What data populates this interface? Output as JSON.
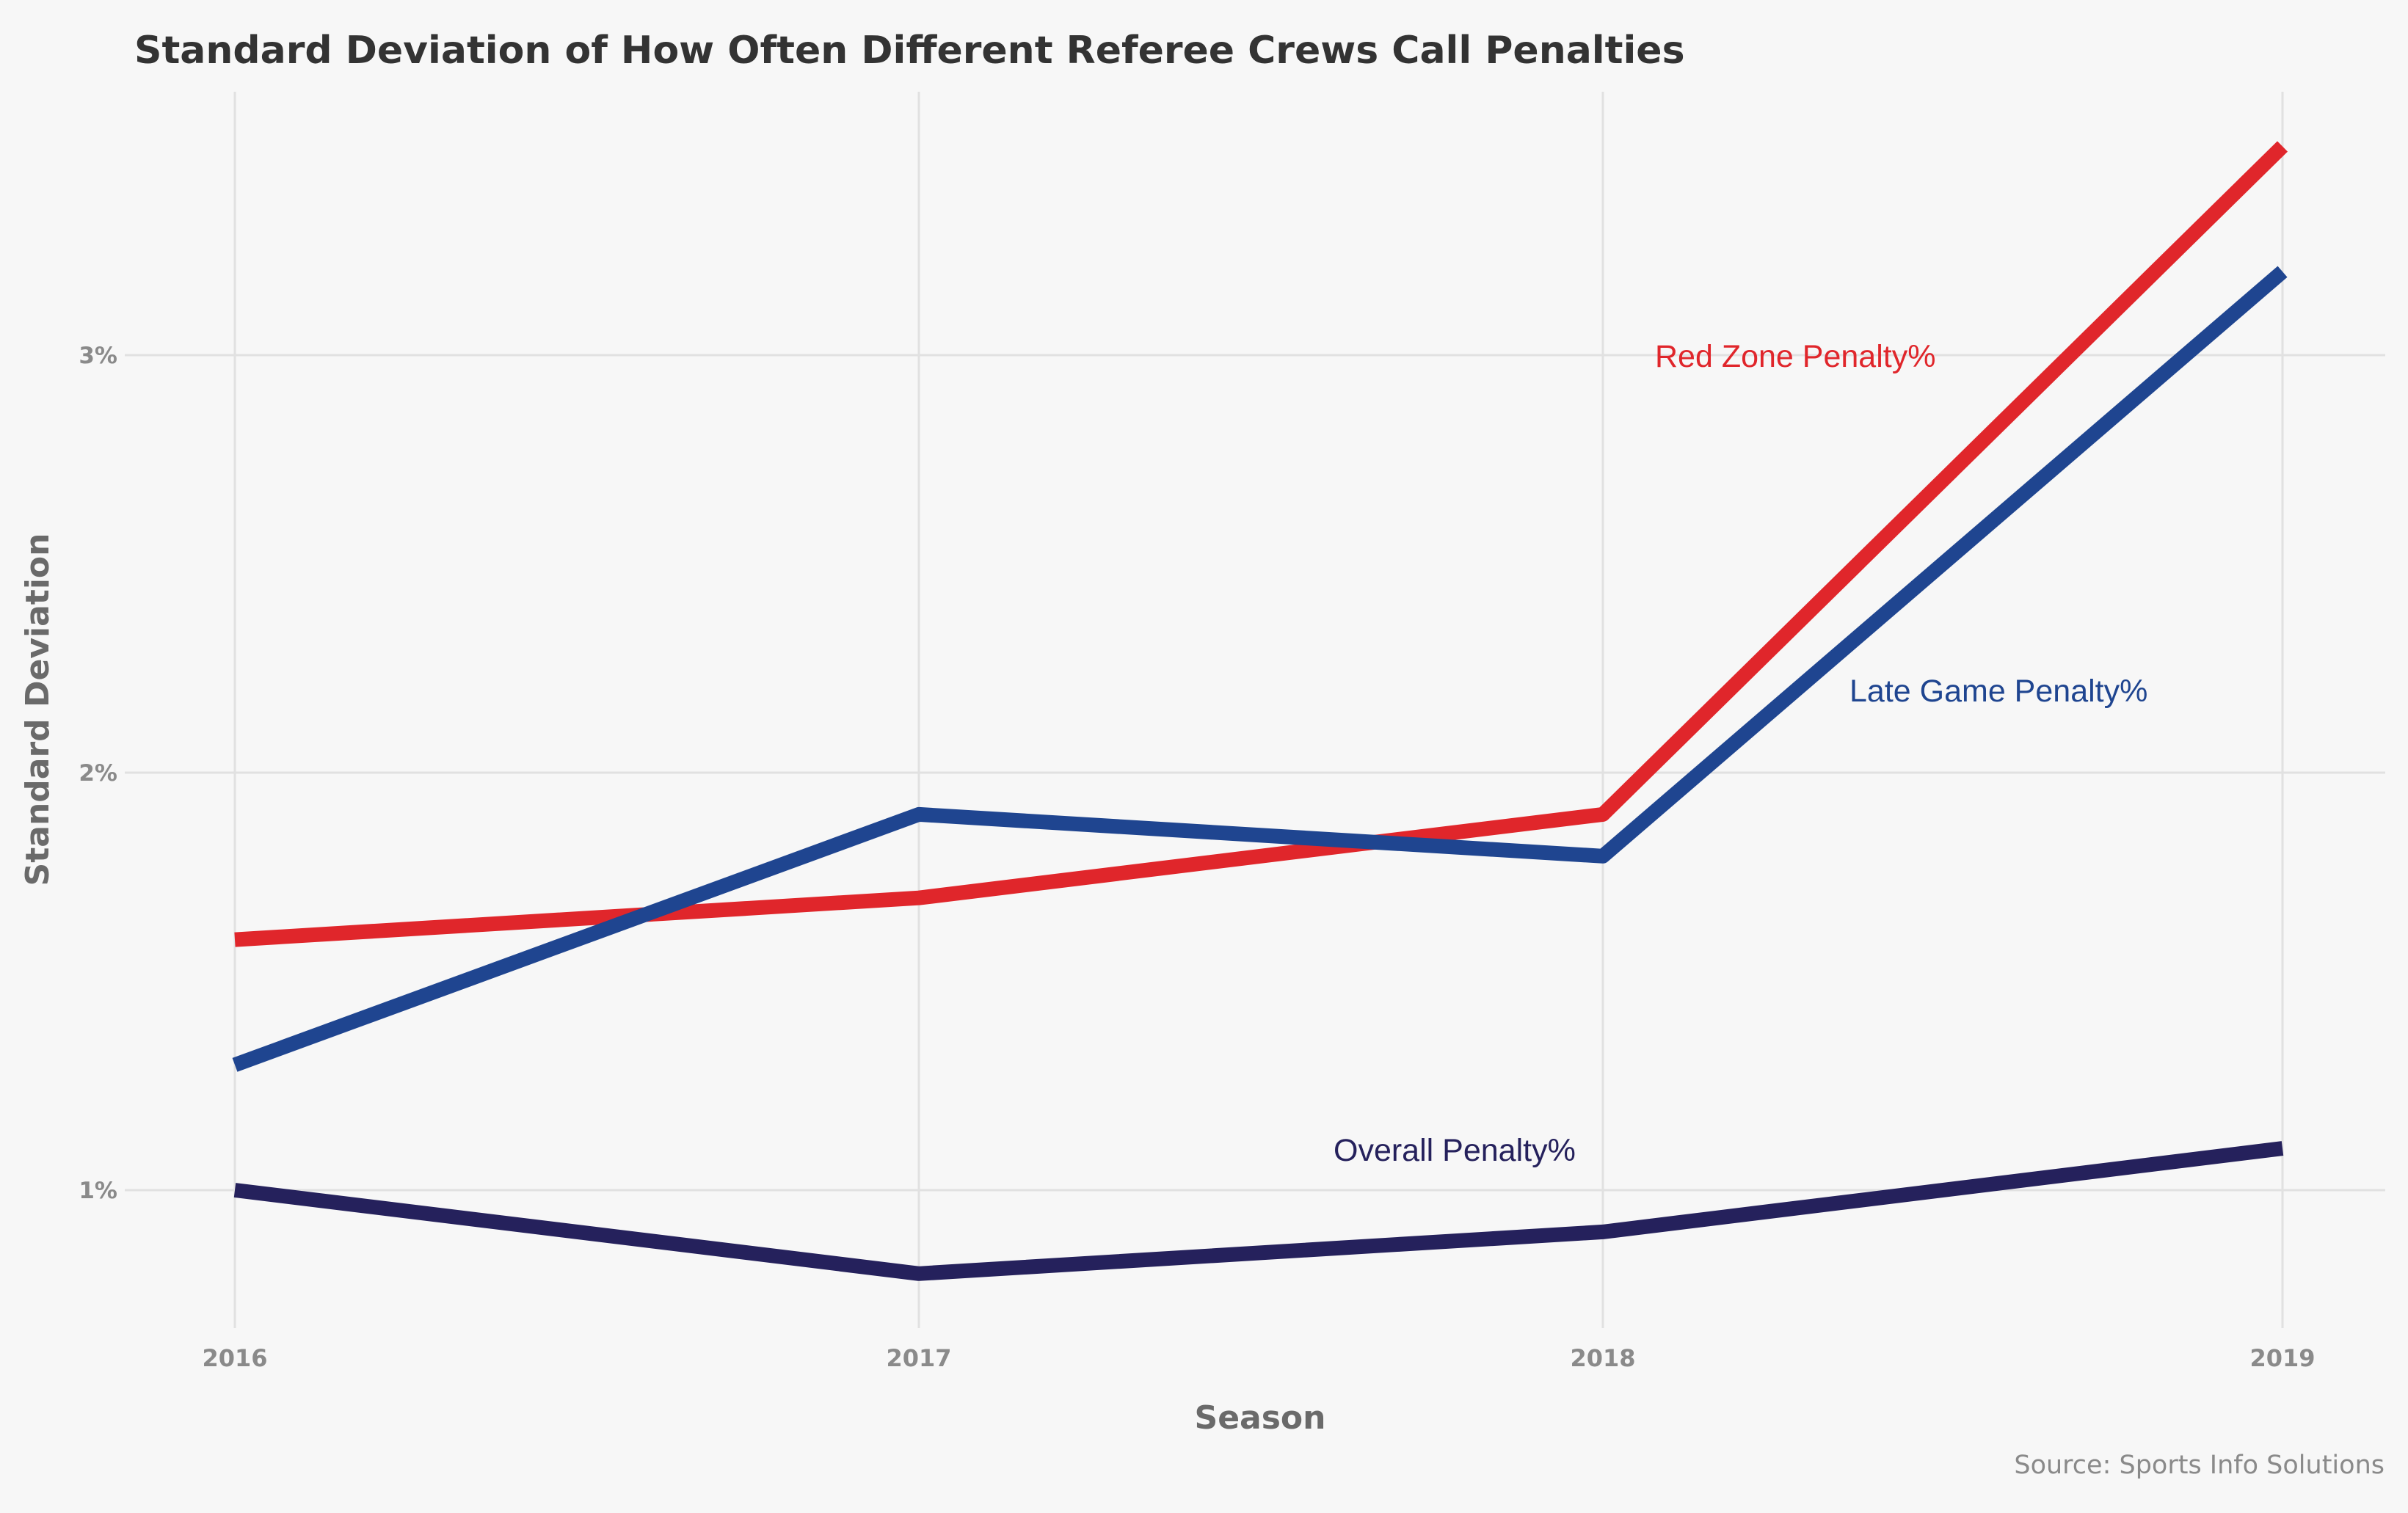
{
  "chart_data": {
    "type": "line",
    "title": "Standard Deviation of How Often Different Referee Crews Call Penalties",
    "xlabel": "Season",
    "ylabel": "Standard Deviation",
    "caption": "Source: Sports Info Solutions",
    "x": [
      "2016",
      "2017",
      "2018",
      "2019"
    ],
    "yticks": [
      {
        "value": 1,
        "label": "1%"
      },
      {
        "value": 2,
        "label": "2%"
      },
      {
        "value": 3,
        "label": "3%"
      }
    ],
    "ylim": [
      0.65,
      3.63
    ],
    "grid": true,
    "series": [
      {
        "name": "Red Zone Penalty%",
        "color": "#e0262b",
        "values": [
          1.6,
          1.7,
          1.9,
          3.5
        ]
      },
      {
        "name": "Late Game Penalty%",
        "color": "#1f4590",
        "values": [
          1.3,
          1.9,
          1.8,
          3.2
        ]
      },
      {
        "name": "Overall Penalty%",
        "color": "#25215c",
        "values": [
          1.0,
          0.8,
          0.9,
          1.1
        ]
      }
    ]
  }
}
